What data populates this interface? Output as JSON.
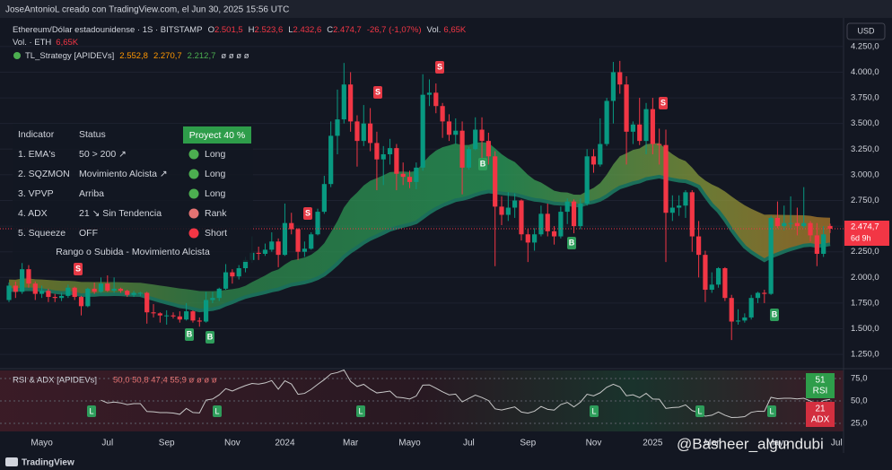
{
  "header": {
    "credit": "JoseAntonioL creado con TradingView.com, el Jun 30, 2025 15:56 UTC",
    "symbol": "Ethereum/Dólar estadounidense · 1S · BITSTAMP",
    "ohlc": [
      {
        "k": "O",
        "v": "2.501,5"
      },
      {
        "k": "H",
        "v": "2.523,6"
      },
      {
        "k": "L",
        "v": "2.432,6"
      },
      {
        "k": "C",
        "v": "2.474,7"
      }
    ],
    "change": "-26,7 (-1,07%)",
    "vol_label": "Vol.",
    "vol_value": "6,65K",
    "vol_line_label": "Vol. · ETH",
    "vol_line_value": "6,65K",
    "strategy": "TL_Strategy [APIDEVs]",
    "strategy_values": [
      "2.552,8",
      "2.270,7",
      "2.212,7",
      "ø ø ø ø"
    ],
    "currency": "USD"
  },
  "table": {
    "header": [
      "Indicator",
      "Status",
      "Proyect 40 %"
    ],
    "rows": [
      [
        "1. EMA's",
        "50 > 200 ↗",
        "Long"
      ],
      [
        "2. SQZMON",
        "Movimiento Alcista ↗",
        "Long"
      ],
      [
        "3. VPVP",
        "Arriba",
        "Long"
      ],
      [
        "4. ADX",
        "21 ↘ Sin Tendencia",
        "Rank"
      ],
      [
        "5. Squeeze",
        "OFF",
        "Short"
      ]
    ],
    "signal_colors": [
      "#4caf50",
      "#4caf50",
      "#4caf50",
      "#e57373",
      "#f23645"
    ],
    "footer": "Rango o Subida - Movimiento Alcista"
  },
  "signals": [
    "S",
    "B",
    "B",
    "S",
    "S",
    "S",
    "B",
    "B",
    "S",
    "B"
  ],
  "rsi_pane": {
    "title": "RSI & ADX [APIDEVs]",
    "values_text": "50,0  50,8  47,4  55,9  ø ø ø ø",
    "ylim": [
      16,
      84
    ],
    "yticks": [
      {
        "value": 75,
        "label": "75,0"
      },
      {
        "value": 50,
        "label": "50,0"
      },
      {
        "value": 25,
        "label": "25,0"
      }
    ],
    "rsi_box": [
      "51",
      "RSI"
    ],
    "adx_box": [
      "21",
      "ADX"
    ],
    "markers": [
      "L",
      "L",
      "L",
      "L",
      "L",
      "L"
    ]
  },
  "footer": {
    "brand": "TradingView",
    "watermark": "@Basheer_algundubi"
  },
  "chart_data": {
    "type": "candlestick",
    "up_color": "#089981",
    "down_color": "#f23645",
    "ylim": [
      1120,
      4310
    ],
    "yticks": [
      {
        "value": 1250,
        "label": "1.250,0"
      },
      {
        "value": 1500,
        "label": "1.500,0"
      },
      {
        "value": 1750,
        "label": "1.750,0"
      },
      {
        "value": 2000,
        "label": "2.000,0"
      },
      {
        "value": 2250,
        "label": "2.250,0"
      },
      {
        "value": 2500,
        "label": "2.500,0"
      },
      {
        "value": 2750,
        "label": "2.750,0"
      },
      {
        "value": 3000,
        "label": "3.000,0"
      },
      {
        "value": 3250,
        "label": "3.250,0"
      },
      {
        "value": 3500,
        "label": "3.500,0"
      },
      {
        "value": 3750,
        "label": "3.750,0"
      },
      {
        "value": 4000,
        "label": "4.000,0"
      },
      {
        "value": 4250,
        "label": "4.250,0"
      }
    ],
    "grid": true,
    "last_price_label": "2.474,7",
    "countdown": "6d 9h",
    "categories": [
      null,
      null,
      null,
      null,
      null,
      "Mayo",
      null,
      null,
      null,
      null,
      null,
      null,
      null,
      null,
      null,
      "Jul",
      null,
      null,
      null,
      null,
      null,
      null,
      null,
      null,
      "Sep",
      null,
      null,
      null,
      null,
      null,
      null,
      null,
      null,
      null,
      "Nov",
      null,
      null,
      null,
      null,
      null,
      null,
      null,
      "2024",
      null,
      null,
      null,
      null,
      null,
      null,
      null,
      null,
      null,
      "Mar",
      null,
      null,
      null,
      null,
      null,
      null,
      null,
      null,
      "Mayo",
      null,
      null,
      null,
      null,
      null,
      null,
      null,
      null,
      "Jul",
      null,
      null,
      null,
      null,
      null,
      null,
      null,
      null,
      "Sep",
      null,
      null,
      null,
      null,
      null,
      null,
      null,
      null,
      null,
      "Nov",
      null,
      null,
      null,
      null,
      null,
      null,
      null,
      null,
      "2025",
      null,
      null,
      null,
      null,
      null,
      null,
      null,
      null,
      "Mar",
      null,
      null,
      null,
      null,
      null,
      null,
      null,
      null,
      null,
      "Mayo",
      null,
      null,
      null,
      null,
      null,
      null,
      null,
      null,
      "Jul"
    ],
    "ohlc": [
      [
        1780,
        1950,
        1760,
        1920
      ],
      [
        1920,
        1960,
        1800,
        1860
      ],
      [
        1860,
        2140,
        1840,
        2080
      ],
      [
        2080,
        2120,
        1900,
        1940
      ],
      [
        1940,
        1960,
        1780,
        1840
      ],
      [
        1840,
        1920,
        1800,
        1870
      ],
      [
        1870,
        1890,
        1760,
        1810
      ],
      [
        1810,
        1840,
        1760,
        1800
      ],
      [
        1800,
        1850,
        1770,
        1820
      ],
      [
        1820,
        1930,
        1800,
        1900
      ],
      [
        1900,
        1910,
        1780,
        1810
      ],
      [
        1810,
        1820,
        1630,
        1720
      ],
      [
        1720,
        1900,
        1710,
        1890
      ],
      [
        1890,
        1950,
        1840,
        1860
      ],
      [
        1860,
        2000,
        1850,
        1940
      ],
      [
        1940,
        2020,
        1860,
        1870
      ],
      [
        1870,
        2000,
        1850,
        1890
      ],
      [
        1890,
        1900,
        1850,
        1870
      ],
      [
        1870,
        1880,
        1810,
        1830
      ],
      [
        1830,
        1870,
        1810,
        1850
      ],
      [
        1850,
        1860,
        1820,
        1850
      ],
      [
        1850,
        1860,
        1550,
        1660
      ],
      [
        1660,
        1740,
        1610,
        1650
      ],
      [
        1650,
        1660,
        1560,
        1630
      ],
      [
        1630,
        1680,
        1540,
        1630
      ],
      [
        1630,
        1660,
        1600,
        1620
      ],
      [
        1620,
        1670,
        1560,
        1590
      ],
      [
        1590,
        1750,
        1580,
        1670
      ],
      [
        1670,
        1680,
        1560,
        1580
      ],
      [
        1580,
        1610,
        1520,
        1570
      ],
      [
        1570,
        1860,
        1560,
        1780
      ],
      [
        1780,
        1860,
        1750,
        1800
      ],
      [
        1800,
        1900,
        1770,
        1890
      ],
      [
        1890,
        2130,
        1880,
        2050
      ],
      [
        2050,
        2080,
        1940,
        2010
      ],
      [
        2010,
        2120,
        1980,
        2090
      ],
      [
        2090,
        2200,
        2050,
        2170
      ],
      [
        2170,
        2400,
        2150,
        2240
      ],
      [
        2240,
        2300,
        2170,
        2230
      ],
      [
        2230,
        2330,
        2210,
        2270
      ],
      [
        2270,
        2440,
        2250,
        2350
      ],
      [
        2350,
        2380,
        2100,
        2220
      ],
      [
        2220,
        2720,
        2210,
        2530
      ],
      [
        2530,
        2630,
        2420,
        2470
      ],
      [
        2470,
        2480,
        2170,
        2250
      ],
      [
        2250,
        2350,
        2200,
        2280
      ],
      [
        2280,
        2440,
        2270,
        2420
      ],
      [
        2420,
        2670,
        2410,
        2640
      ],
      [
        2640,
        2990,
        2620,
        2910
      ],
      [
        2910,
        3520,
        2880,
        3380
      ],
      [
        3380,
        3830,
        3200,
        3540
      ],
      [
        3540,
        4090,
        3500,
        3880
      ],
      [
        3880,
        4000,
        3420,
        3520
      ],
      [
        3520,
        3580,
        3080,
        3330
      ],
      [
        3330,
        3680,
        3280,
        3500
      ],
      [
        3500,
        3650,
        3230,
        3310
      ],
      [
        3310,
        3420,
        2850,
        3150
      ],
      [
        3150,
        3280,
        2900,
        3200
      ],
      [
        3200,
        3350,
        3100,
        3260
      ],
      [
        3260,
        3300,
        2850,
        3010
      ],
      [
        3010,
        3120,
        2900,
        2980
      ],
      [
        2980,
        3040,
        2870,
        2930
      ],
      [
        2930,
        3120,
        2860,
        3070
      ],
      [
        3070,
        3980,
        3040,
        3780
      ],
      [
        3780,
        3930,
        3670,
        3800
      ],
      [
        3800,
        3890,
        3600,
        3670
      ],
      [
        3670,
        3700,
        3360,
        3520
      ],
      [
        3520,
        3590,
        3330,
        3390
      ],
      [
        3390,
        3550,
        3300,
        3430
      ],
      [
        3430,
        3520,
        2810,
        3070
      ],
      [
        3070,
        3270,
        3050,
        3250
      ],
      [
        3250,
        3560,
        3240,
        3440
      ],
      [
        3440,
        3560,
        3100,
        3330
      ],
      [
        3330,
        3410,
        3100,
        3180
      ],
      [
        3180,
        3230,
        2110,
        2690
      ],
      [
        2690,
        2790,
        2510,
        2610
      ],
      [
        2610,
        2830,
        2550,
        2680
      ],
      [
        2680,
        2820,
        2580,
        2750
      ],
      [
        2750,
        2760,
        2360,
        2420
      ],
      [
        2420,
        2470,
        2150,
        2340
      ],
      [
        2340,
        2480,
        2260,
        2420
      ],
      [
        2420,
        2700,
        2400,
        2620
      ],
      [
        2620,
        2720,
        2400,
        2450
      ],
      [
        2450,
        2500,
        2320,
        2400
      ],
      [
        2400,
        2690,
        2380,
        2640
      ],
      [
        2640,
        2770,
        2520,
        2740
      ],
      [
        2740,
        2760,
        2430,
        2500
      ],
      [
        2500,
        2770,
        2470,
        2720
      ],
      [
        2720,
        3250,
        2700,
        3180
      ],
      [
        3180,
        3250,
        3020,
        3100
      ],
      [
        3100,
        3550,
        3080,
        3300
      ],
      [
        3300,
        3750,
        3280,
        3720
      ],
      [
        3720,
        4100,
        3500,
        4000
      ],
      [
        4000,
        4110,
        3790,
        3880
      ],
      [
        3880,
        3960,
        3100,
        3420
      ],
      [
        3420,
        3520,
        3300,
        3490
      ],
      [
        3490,
        3750,
        3290,
        3330
      ],
      [
        3330,
        3700,
        3200,
        3640
      ],
      [
        3640,
        3750,
        3200,
        3300
      ],
      [
        3300,
        3450,
        3100,
        3290
      ],
      [
        3290,
        3440,
        2150,
        2630
      ],
      [
        2630,
        2800,
        2550,
        2680
      ],
      [
        2680,
        2800,
        2600,
        2700
      ],
      [
        2700,
        2850,
        2580,
        2830
      ],
      [
        2830,
        2850,
        2250,
        2400
      ],
      [
        2400,
        2550,
        2000,
        2220
      ],
      [
        2220,
        2260,
        1760,
        1880
      ],
      [
        1880,
        2050,
        1850,
        1930
      ],
      [
        1930,
        2100,
        1900,
        2090
      ],
      [
        2090,
        2100,
        1770,
        1800
      ],
      [
        1800,
        1830,
        1390,
        1570
      ],
      [
        1570,
        1690,
        1540,
        1580
      ],
      [
        1580,
        1650,
        1560,
        1610
      ],
      [
        1610,
        1830,
        1590,
        1800
      ],
      [
        1800,
        1860,
        1750,
        1850
      ],
      [
        1850,
        1880,
        1750,
        1840
      ],
      [
        1840,
        2600,
        1830,
        2580
      ],
      [
        2580,
        2740,
        2480,
        2500
      ],
      [
        2500,
        2700,
        2460,
        2530
      ],
      [
        2530,
        2790,
        2480,
        2530
      ],
      [
        2530,
        2680,
        2410,
        2500
      ],
      [
        2500,
        2880,
        2480,
        2530
      ],
      [
        2530,
        2550,
        2350,
        2410
      ],
      [
        2410,
        2530,
        2110,
        2230
      ],
      [
        2230,
        2500,
        2200,
        2420
      ],
      [
        2501.5,
        2523.6,
        2432.6,
        2474.7
      ],
      null
    ]
  }
}
